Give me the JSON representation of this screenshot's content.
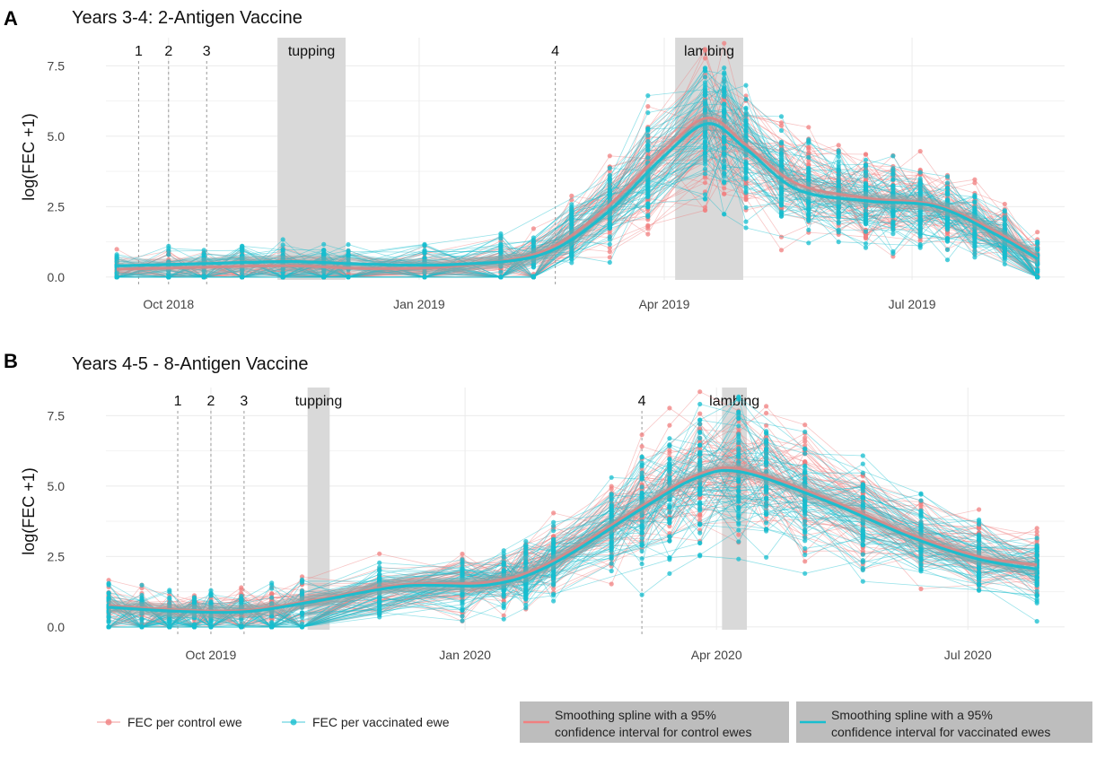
{
  "chart_data": [
    {
      "panel_label": "A",
      "type": "line",
      "title": "Years 3-4: 2-Antigen Vaccine",
      "xlabel": "",
      "ylabel": "log(FEC +1)",
      "xlim": [
        "2018-09-08",
        "2019-08-26"
      ],
      "ylim": [
        -0.1,
        8.5
      ],
      "grid": true,
      "x_ticks": [
        {
          "date": "2018-10-01",
          "label": "Oct 2018"
        },
        {
          "date": "2019-01-01",
          "label": "Jan 2019"
        },
        {
          "date": "2019-04-01",
          "label": "Apr 2019"
        },
        {
          "date": "2019-07-01",
          "label": "Jul 2019"
        }
      ],
      "y_ticks": [
        0.0,
        2.5,
        5.0,
        7.5
      ],
      "y_tick_labels": [
        "0.0",
        "2.5",
        "5.0",
        "7.5"
      ],
      "events": [
        {
          "label": "1",
          "date": "2018-09-20"
        },
        {
          "label": "2",
          "date": "2018-10-01"
        },
        {
          "label": "3",
          "date": "2018-10-15"
        },
        {
          "label": "4",
          "date": "2019-02-20"
        }
      ],
      "shaded_periods": [
        {
          "label": "tupping",
          "start": "2018-11-10",
          "end": "2018-12-05"
        },
        {
          "label": "lambing",
          "start": "2019-04-05",
          "end": "2019-04-30"
        }
      ],
      "sampling_dates": [
        "2018-09-12",
        "2018-10-01",
        "2018-10-14",
        "2018-10-28",
        "2018-11-12",
        "2018-11-27",
        "2018-12-06",
        "2019-01-03",
        "2019-01-31",
        "2019-02-12",
        "2019-02-26",
        "2019-03-12",
        "2019-03-26",
        "2019-04-16",
        "2019-04-23",
        "2019-05-01",
        "2019-05-14",
        "2019-05-24",
        "2019-06-04",
        "2019-06-14",
        "2019-06-24",
        "2019-07-04",
        "2019-07-14",
        "2019-07-24",
        "2019-08-04",
        "2019-08-16"
      ],
      "series": [
        {
          "name": "Control ewes smoothing spline",
          "color": "#F08080",
          "x": [
            "2018-09-12",
            "2018-10-15",
            "2018-11-15",
            "2018-12-15",
            "2019-01-15",
            "2019-02-15",
            "2019-03-10",
            "2019-04-01",
            "2019-04-17",
            "2019-05-01",
            "2019-05-20",
            "2019-06-15",
            "2019-07-10",
            "2019-08-01",
            "2019-08-16"
          ],
          "y": [
            0.28,
            0.35,
            0.4,
            0.3,
            0.4,
            0.9,
            2.4,
            4.5,
            5.65,
            4.7,
            3.3,
            2.8,
            2.55,
            1.6,
            0.7
          ]
        },
        {
          "name": "Vaccinated ewes smoothing spline",
          "color": "#17BECF",
          "x": [
            "2018-09-12",
            "2018-10-15",
            "2018-11-15",
            "2018-12-15",
            "2019-01-15",
            "2019-02-15",
            "2019-03-10",
            "2019-04-01",
            "2019-04-17",
            "2019-05-01",
            "2019-05-20",
            "2019-06-15",
            "2019-07-10",
            "2019-08-01",
            "2019-08-16"
          ],
          "y": [
            0.4,
            0.48,
            0.55,
            0.45,
            0.45,
            0.8,
            2.2,
            4.3,
            5.45,
            4.55,
            3.1,
            2.7,
            2.5,
            1.5,
            0.65
          ]
        }
      ]
    },
    {
      "panel_label": "B",
      "type": "line",
      "title": "Years 4-5 -  8-Antigen Vaccine",
      "xlabel": "",
      "ylabel": "log(FEC +1)",
      "xlim": [
        "2019-08-24",
        "2020-08-05"
      ],
      "ylim": [
        -0.1,
        8.5
      ],
      "grid": true,
      "x_ticks": [
        {
          "date": "2019-10-01",
          "label": "Oct 2019"
        },
        {
          "date": "2020-01-01",
          "label": "Jan 2020"
        },
        {
          "date": "2020-04-01",
          "label": "Apr 2020"
        },
        {
          "date": "2020-07-01",
          "label": "Jul 2020"
        }
      ],
      "y_ticks": [
        0.0,
        2.5,
        5.0,
        7.5
      ],
      "y_tick_labels": [
        "0.0",
        "2.5",
        "5.0",
        "7.5"
      ],
      "events": [
        {
          "label": "1",
          "date": "2019-09-19"
        },
        {
          "label": "2",
          "date": "2019-10-01"
        },
        {
          "label": "3",
          "date": "2019-10-13"
        },
        {
          "label": "4",
          "date": "2020-03-05"
        }
      ],
      "shaded_periods": [
        {
          "label": "tupping",
          "start": "2019-11-05",
          "end": "2019-11-13"
        },
        {
          "label": "lambing",
          "start": "2020-04-03",
          "end": "2020-04-12"
        }
      ],
      "sampling_dates": [
        "2019-08-25",
        "2019-09-06",
        "2019-09-16",
        "2019-09-25",
        "2019-10-01",
        "2019-10-12",
        "2019-10-23",
        "2019-11-03",
        "2019-12-01",
        "2019-12-31",
        "2020-01-15",
        "2020-01-23",
        "2020-02-02",
        "2020-02-23",
        "2020-03-05",
        "2020-03-15",
        "2020-03-26",
        "2020-04-09",
        "2020-04-19",
        "2020-05-03",
        "2020-05-24",
        "2020-06-14",
        "2020-07-05",
        "2020-07-26"
      ],
      "series": [
        {
          "name": "Control ewes smoothing spline",
          "color": "#F08080",
          "x": [
            "2019-08-25",
            "2019-09-20",
            "2019-10-15",
            "2019-11-10",
            "2019-12-10",
            "2020-01-10",
            "2020-02-01",
            "2020-03-05",
            "2020-03-25",
            "2020-04-10",
            "2020-05-10",
            "2020-06-10",
            "2020-07-05",
            "2020-07-26"
          ],
          "y": [
            0.75,
            0.6,
            0.6,
            1.0,
            1.5,
            1.6,
            2.3,
            4.3,
            5.4,
            5.6,
            4.6,
            3.3,
            2.5,
            2.2
          ]
        },
        {
          "name": "Vaccinated ewes smoothing spline",
          "color": "#17BECF",
          "x": [
            "2019-08-25",
            "2019-09-20",
            "2019-10-15",
            "2019-11-10",
            "2019-12-10",
            "2020-01-10",
            "2020-02-01",
            "2020-03-05",
            "2020-03-25",
            "2020-04-10",
            "2020-05-10",
            "2020-06-10",
            "2020-07-05",
            "2020-07-26"
          ],
          "y": [
            0.7,
            0.55,
            0.55,
            0.95,
            1.45,
            1.5,
            2.2,
            4.2,
            5.3,
            5.5,
            4.5,
            3.2,
            2.4,
            2.05
          ]
        }
      ]
    }
  ],
  "legend": {
    "placement": "bottom",
    "items": [
      {
        "kind": "points",
        "color": "#F08080",
        "label": "FEC per control ewe"
      },
      {
        "kind": "points",
        "color": "#17BECF",
        "label": "FEC per vaccinated ewe"
      },
      {
        "kind": "spline",
        "color": "#F08080",
        "label": "Smoothing spline with a 95% confidence interval for control ewes"
      },
      {
        "kind": "spline",
        "color": "#17BECF",
        "label": "Smoothing spline with a 95% confidence interval for vaccinated ewes"
      }
    ]
  },
  "legend_text": {
    "control_points": "FEC per control ewe",
    "vaccinated_points": "FEC per vaccinated ewe",
    "control_spline_line1": "Smoothing spline with a 95%",
    "control_spline_line2": "confidence interval for control ewes",
    "vaccinated_spline_line1": "Smoothing spline with a 95%",
    "vaccinated_spline_line2": "confidence interval for vaccinated ewes"
  },
  "colors": {
    "control": "#F08080",
    "vaccinated": "#17BECF",
    "shade": "#D9D9D9",
    "grid": "#EBEBEB"
  }
}
